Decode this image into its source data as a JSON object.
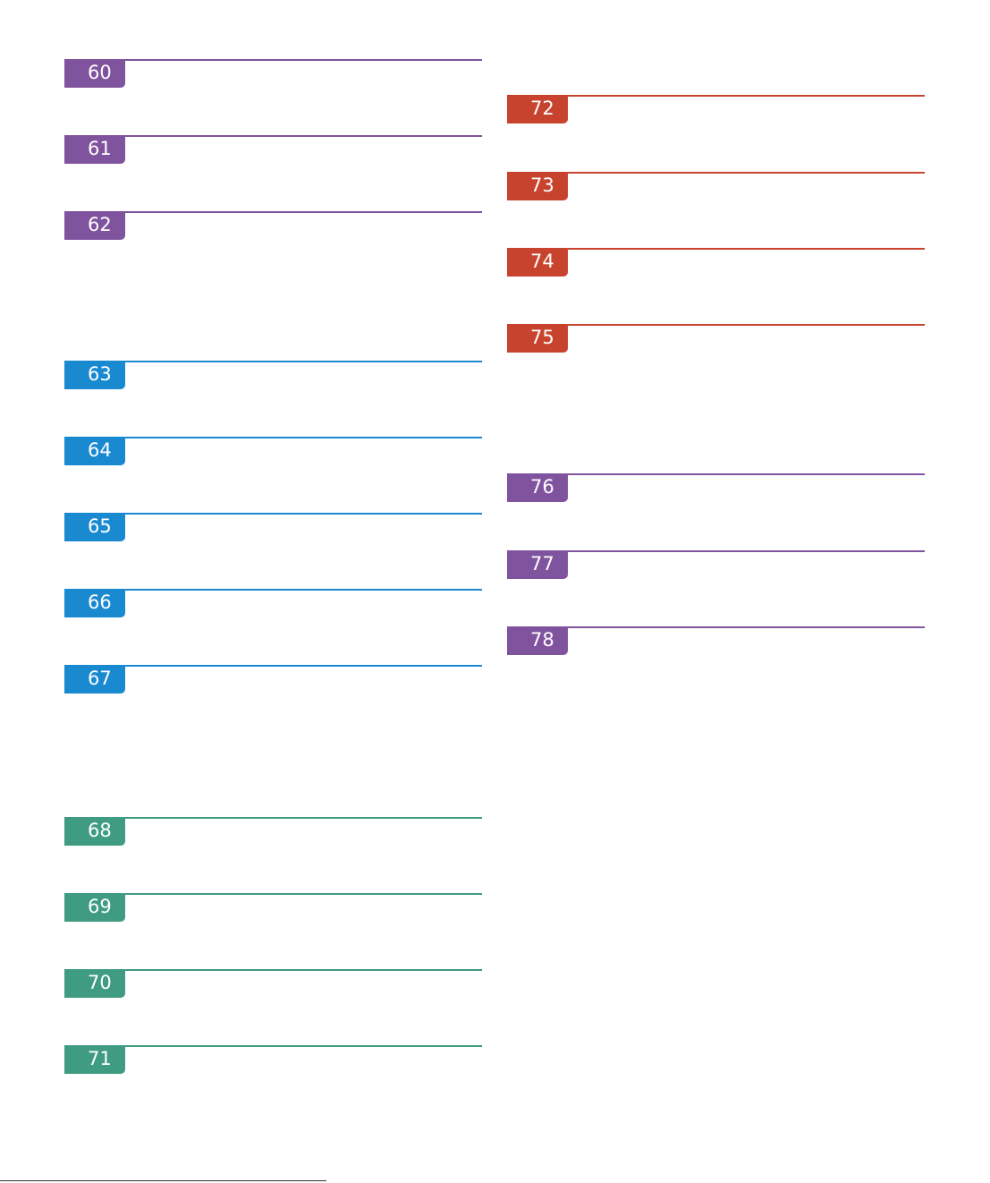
{
  "columns": [
    {
      "groups": [
        {
          "sections": [
            "60",
            "61",
            "62"
          ]
        },
        {
          "sections": [
            "63",
            "64",
            "65",
            "66",
            "67"
          ]
        },
        {
          "sections": [
            "68",
            "69",
            "70",
            "71"
          ]
        }
      ]
    },
    {
      "groups": [
        {
          "sections": [
            "72",
            "73",
            "74",
            "75"
          ]
        },
        {
          "sections": [
            "76",
            "77",
            "78"
          ]
        }
      ]
    }
  ]
}
